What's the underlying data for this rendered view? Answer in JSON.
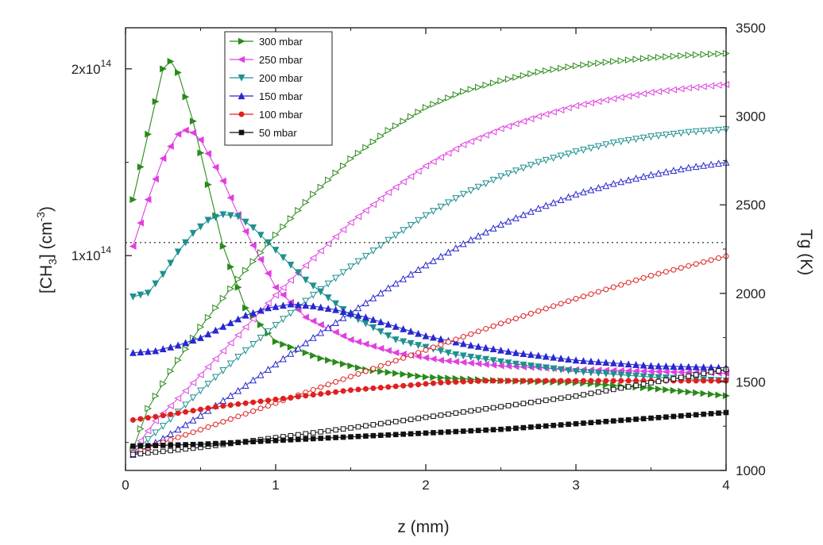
{
  "chart_data": {
    "type": "line",
    "xlabel": "z (mm)",
    "ylabel_left": "[CH3] (cm-3)",
    "ylabel_left_parts": {
      "a": "[CH",
      "sub": "3",
      "b": "] (cm",
      "sup": "-3",
      "c": ")"
    },
    "ylabel_right": "Tg (K)",
    "xlim": [
      0,
      4
    ],
    "ylim_left": [
      -0.15,
      2.22
    ],
    "ylim_right": [
      1000,
      3500
    ],
    "left_scale_unit": "1e14 cm-3",
    "x_ticks": [
      {
        "value": 0,
        "label": "0"
      },
      {
        "value": 1,
        "label": "1"
      },
      {
        "value": 2,
        "label": "2"
      },
      {
        "value": 3,
        "label": "3"
      },
      {
        "value": 4,
        "label": "4"
      }
    ],
    "left_ticks": [
      {
        "value": 1,
        "mant": "1x10",
        "exp": "14"
      },
      {
        "value": 2,
        "mant": "2x10",
        "exp": "14"
      }
    ],
    "right_ticks": [
      {
        "value": 1000,
        "label": "1000"
      },
      {
        "value": 1500,
        "label": "1500"
      },
      {
        "value": 2000,
        "label": "2000"
      },
      {
        "value": 2500,
        "label": "2500"
      },
      {
        "value": 3000,
        "label": "3000"
      },
      {
        "value": 3500,
        "label": "3500"
      }
    ],
    "reference_line_left_value": 1.07,
    "legend_position": "top-left",
    "series": [
      {
        "name": "300 mbar",
        "color": "#2a8a1a",
        "marker": "tri-right",
        "ch3_x": [
          0.05,
          0.15,
          0.25,
          0.3,
          0.35,
          0.45,
          0.55,
          0.65,
          0.8,
          1.0,
          1.3,
          1.6,
          2.0,
          2.5,
          3.0,
          3.5,
          4.0
        ],
        "ch3_y": [
          1.3,
          1.65,
          2.0,
          2.04,
          1.98,
          1.72,
          1.38,
          1.05,
          0.72,
          0.54,
          0.45,
          0.39,
          0.35,
          0.33,
          0.32,
          0.29,
          0.25
        ],
        "tg_x": [
          0.05,
          0.15,
          0.3,
          0.5,
          0.75,
          1.0,
          1.25,
          1.5,
          1.75,
          2.0,
          2.25,
          2.5,
          2.75,
          3.0,
          3.25,
          3.5,
          3.75,
          4.0
        ],
        "tg_y": [
          1120,
          1350,
          1560,
          1810,
          2080,
          2330,
          2560,
          2760,
          2920,
          3050,
          3140,
          3200,
          3250,
          3285,
          3310,
          3330,
          3345,
          3355
        ]
      },
      {
        "name": "250 mbar",
        "color": "#e040e0",
        "marker": "tri-left",
        "ch3_x": [
          0.05,
          0.15,
          0.25,
          0.35,
          0.42,
          0.5,
          0.65,
          0.8,
          1.0,
          1.2,
          1.5,
          1.8,
          2.1,
          2.5,
          3.0,
          3.5,
          4.0
        ],
        "ch3_y": [
          1.05,
          1.3,
          1.52,
          1.65,
          1.68,
          1.62,
          1.4,
          1.13,
          0.83,
          0.67,
          0.55,
          0.48,
          0.44,
          0.41,
          0.39,
          0.38,
          0.37
        ],
        "tg_x": [
          0.05,
          0.2,
          0.4,
          0.6,
          0.8,
          1.0,
          1.25,
          1.5,
          1.75,
          2.0,
          2.25,
          2.5,
          2.75,
          3.0,
          3.25,
          3.5,
          3.75,
          4.0
        ],
        "tg_y": [
          1110,
          1280,
          1450,
          1630,
          1810,
          1990,
          2200,
          2400,
          2570,
          2720,
          2840,
          2930,
          3000,
          3060,
          3100,
          3135,
          3160,
          3180
        ]
      },
      {
        "name": "200 mbar",
        "color": "#1e9090",
        "marker": "tri-down",
        "ch3_x": [
          0.05,
          0.15,
          0.25,
          0.35,
          0.45,
          0.55,
          0.65,
          0.75,
          0.85,
          1.0,
          1.2,
          1.5,
          1.8,
          2.2,
          2.6,
          3.0,
          3.5,
          4.0
        ],
        "ch3_y": [
          0.78,
          0.8,
          0.9,
          1.02,
          1.12,
          1.19,
          1.22,
          1.21,
          1.15,
          1.03,
          0.87,
          0.68,
          0.55,
          0.47,
          0.42,
          0.38,
          0.35,
          0.33
        ],
        "tg_x": [
          0.05,
          0.25,
          0.5,
          0.75,
          1.0,
          1.25,
          1.5,
          1.75,
          2.0,
          2.25,
          2.5,
          2.75,
          3.0,
          3.25,
          3.5,
          3.75,
          4.0
        ],
        "tg_y": [
          1100,
          1250,
          1450,
          1640,
          1820,
          1990,
          2150,
          2300,
          2440,
          2560,
          2660,
          2740,
          2800,
          2850,
          2885,
          2910,
          2925
        ]
      },
      {
        "name": "150 mbar",
        "color": "#2828d0",
        "marker": "tri-up",
        "ch3_x": [
          0.05,
          0.2,
          0.35,
          0.5,
          0.65,
          0.8,
          0.95,
          1.1,
          1.25,
          1.4,
          1.6,
          1.8,
          2.0,
          2.3,
          2.6,
          3.0,
          3.5,
          4.0
        ],
        "ch3_y": [
          0.48,
          0.49,
          0.52,
          0.56,
          0.62,
          0.68,
          0.72,
          0.74,
          0.73,
          0.71,
          0.67,
          0.62,
          0.57,
          0.52,
          0.48,
          0.44,
          0.41,
          0.4
        ],
        "tg_x": [
          0.05,
          0.25,
          0.5,
          0.75,
          1.0,
          1.25,
          1.5,
          1.75,
          2.0,
          2.25,
          2.5,
          2.75,
          3.0,
          3.25,
          3.5,
          3.75,
          4.0
        ],
        "tg_y": [
          1090,
          1180,
          1310,
          1450,
          1600,
          1750,
          1890,
          2030,
          2160,
          2280,
          2390,
          2480,
          2560,
          2620,
          2670,
          2710,
          2740
        ]
      },
      {
        "name": "100 mbar",
        "color": "#e02020",
        "marker": "circle",
        "ch3_x": [
          0.05,
          0.3,
          0.6,
          0.9,
          1.2,
          1.5,
          1.8,
          2.1,
          2.4,
          2.7,
          3.0,
          3.5,
          4.0
        ],
        "ch3_y": [
          0.12,
          0.15,
          0.19,
          0.22,
          0.25,
          0.28,
          0.3,
          0.32,
          0.33,
          0.33,
          0.33,
          0.33,
          0.33
        ],
        "tg_x": [
          0.05,
          0.5,
          1.0,
          1.5,
          2.0,
          2.5,
          3.0,
          3.5,
          4.0
        ],
        "tg_y": [
          1100,
          1230,
          1380,
          1530,
          1680,
          1830,
          1970,
          2100,
          2210
        ]
      },
      {
        "name": "50 mbar",
        "color": "#111111",
        "marker": "square",
        "ch3_x": [
          0.05,
          0.5,
          1.0,
          1.5,
          2.0,
          2.5,
          3.0,
          3.5,
          4.0
        ],
        "ch3_y": [
          -0.02,
          -0.01,
          0.01,
          0.03,
          0.05,
          0.07,
          0.1,
          0.13,
          0.16
        ],
        "tg_x": [
          0.05,
          0.5,
          1.0,
          1.5,
          2.0,
          2.5,
          3.0,
          3.5,
          4.0
        ],
        "tg_y": [
          1090,
          1130,
          1185,
          1240,
          1300,
          1360,
          1420,
          1495,
          1570
        ]
      }
    ]
  }
}
